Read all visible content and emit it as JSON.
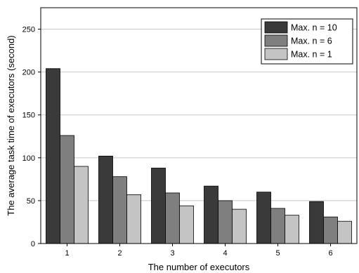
{
  "chart_data": {
    "type": "bar",
    "title": "",
    "xlabel": "The number of executors",
    "ylabel": "The average task time of executors (second)",
    "categories": [
      "1",
      "2",
      "3",
      "4",
      "5",
      "6"
    ],
    "ylim": [
      0,
      275
    ],
    "yticks": [
      0,
      50,
      100,
      150,
      200,
      250
    ],
    "grid": true,
    "legend_position": "top-right",
    "series": [
      {
        "name": "Max. n = 10",
        "color": "#3a3a3a",
        "values": [
          204,
          102,
          88,
          67,
          60,
          49
        ]
      },
      {
        "name": "Max. n = 6",
        "color": "#7f7f7f",
        "values": [
          126,
          78,
          59,
          50,
          41,
          31
        ]
      },
      {
        "name": "Max. n = 1",
        "color": "#c4c4c4",
        "values": [
          90,
          57,
          44,
          40,
          33,
          26
        ]
      }
    ]
  }
}
